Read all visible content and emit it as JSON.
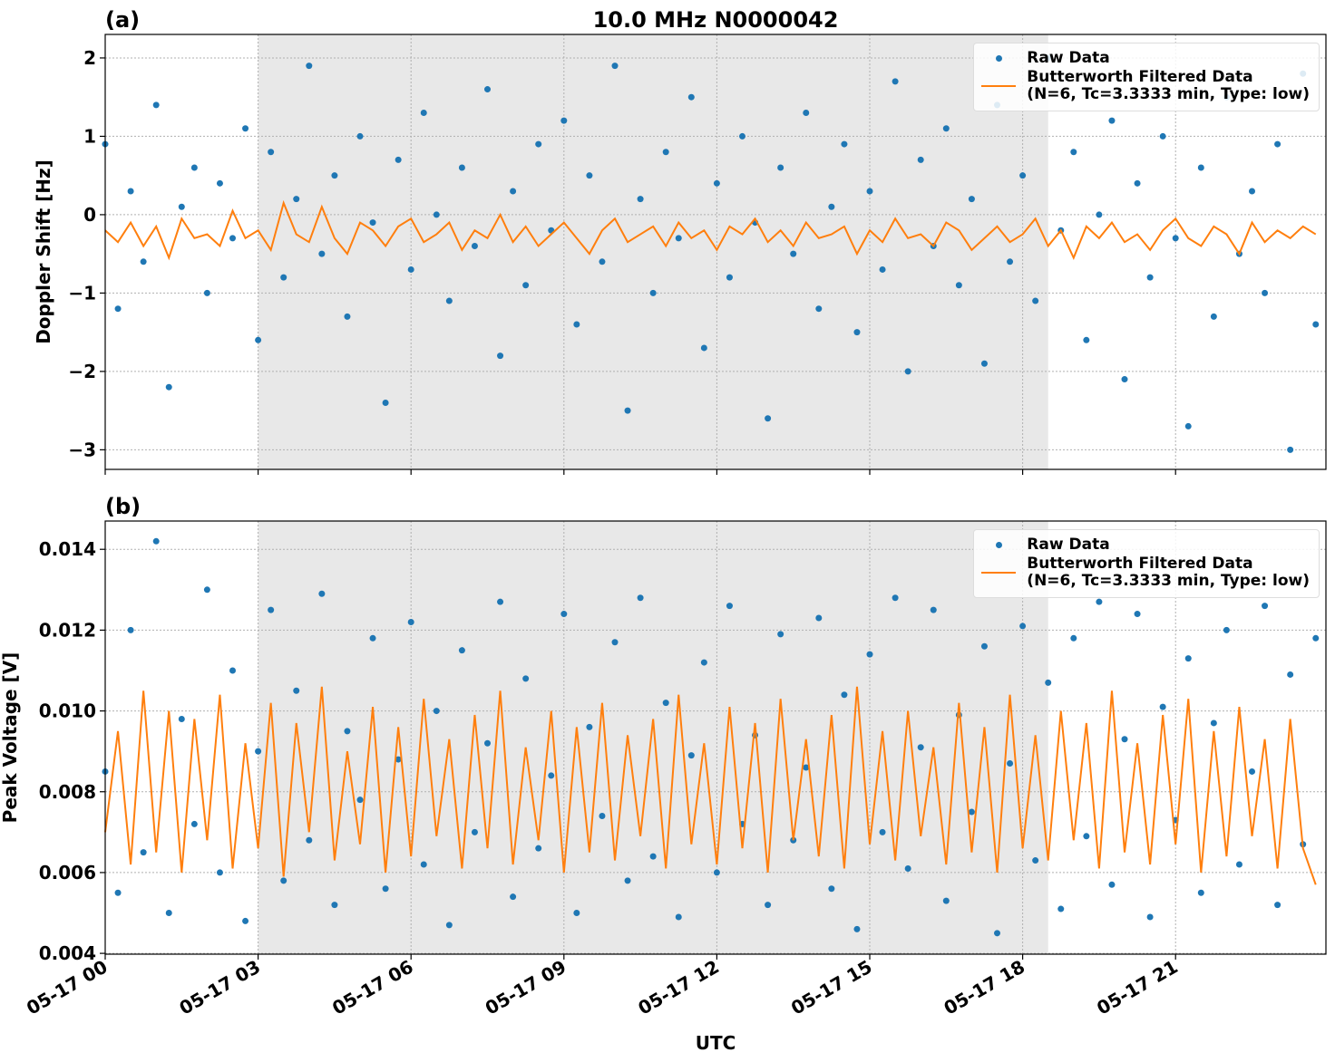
{
  "chart_data": [
    {
      "type": "line",
      "panel_label": "(a)",
      "title": "10.0 MHz N0000042",
      "ylabel": "Doppler Shift [Hz]",
      "x": [
        0,
        0.25,
        0.5,
        0.75,
        1,
        1.25,
        1.5,
        1.75,
        2,
        2.25,
        2.5,
        2.75,
        3,
        3.25,
        3.5,
        3.75,
        4,
        4.25,
        4.5,
        4.75,
        5,
        5.25,
        5.5,
        5.75,
        6,
        6.25,
        6.5,
        6.75,
        7,
        7.25,
        7.5,
        7.75,
        8,
        8.25,
        8.5,
        8.75,
        9,
        9.25,
        9.5,
        9.75,
        10,
        10.25,
        10.5,
        10.75,
        11,
        11.25,
        11.5,
        11.75,
        12,
        12.25,
        12.5,
        12.75,
        13,
        13.25,
        13.5,
        13.75,
        14,
        14.25,
        14.5,
        14.75,
        15,
        15.25,
        15.5,
        15.75,
        16,
        16.25,
        16.5,
        16.75,
        17,
        17.25,
        17.5,
        17.75,
        18,
        18.25,
        18.5,
        18.75,
        19,
        19.25,
        19.5,
        19.75,
        20,
        20.25,
        20.5,
        20.75,
        21,
        21.25,
        21.5,
        21.75,
        22,
        22.25,
        22.5,
        22.75,
        23,
        23.25,
        23.5,
        23.75
      ],
      "xlim": [
        0,
        23.95
      ],
      "ylim": [
        -3.25,
        2.3
      ],
      "xticks": [
        0,
        3,
        6,
        9,
        12,
        15,
        18,
        21
      ],
      "yticks": [
        {
          "value": -3,
          "label": "−3"
        },
        {
          "value": -2,
          "label": "−2"
        },
        {
          "value": -1,
          "label": "−1"
        },
        0,
        1,
        2
      ],
      "grid": true,
      "shaded_span": [
        3,
        18.5
      ],
      "legend": "upper right",
      "series": [
        {
          "name": "Raw Data",
          "color": "#1f77b4",
          "mode": "markers",
          "values": [
            0.9,
            -1.2,
            0.3,
            -0.6,
            1.4,
            -2.2,
            0.1,
            0.6,
            -1.0,
            0.4,
            -0.3,
            1.1,
            -1.6,
            0.8,
            -0.8,
            0.2,
            1.9,
            -0.5,
            0.5,
            -1.3,
            1.0,
            -0.1,
            -2.4,
            0.7,
            -0.7,
            1.3,
            0.0,
            -1.1,
            0.6,
            -0.4,
            1.6,
            -1.8,
            0.3,
            -0.9,
            0.9,
            -0.2,
            1.2,
            -1.4,
            0.5,
            -0.6,
            1.9,
            -2.5,
            0.2,
            -1.0,
            0.8,
            -0.3,
            1.5,
            -1.7,
            0.4,
            -0.8,
            1.0,
            -0.1,
            -2.6,
            0.6,
            -0.5,
            1.3,
            -1.2,
            0.1,
            0.9,
            -1.5,
            0.3,
            -0.7,
            1.7,
            -2.0,
            0.7,
            -0.4,
            1.1,
            -0.9,
            0.2,
            -1.9,
            1.4,
            -0.6,
            0.5,
            -1.1,
            2.0,
            -0.2,
            0.8,
            -1.6,
            0.0,
            1.2,
            -2.1,
            0.4,
            -0.8,
            1.0,
            -0.3,
            -2.7,
            0.6,
            -1.3,
            1.5,
            -0.5,
            0.3,
            -1.0,
            0.9,
            -3.0,
            1.8,
            -1.4
          ]
        },
        {
          "name": "Butterworth Filtered Data\n(N=6, Tc=3.3333 min, Type: low)",
          "color": "#ff7f0e",
          "mode": "line",
          "values": [
            -0.2,
            -0.35,
            -0.1,
            -0.4,
            -0.15,
            -0.55,
            -0.05,
            -0.3,
            -0.25,
            -0.4,
            0.05,
            -0.3,
            -0.2,
            -0.45,
            0.15,
            -0.25,
            -0.35,
            0.1,
            -0.3,
            -0.5,
            -0.1,
            -0.2,
            -0.4,
            -0.15,
            -0.05,
            -0.35,
            -0.25,
            -0.1,
            -0.45,
            -0.2,
            -0.3,
            0.0,
            -0.35,
            -0.15,
            -0.4,
            -0.25,
            -0.1,
            -0.3,
            -0.5,
            -0.2,
            -0.05,
            -0.35,
            -0.25,
            -0.15,
            -0.4,
            -0.1,
            -0.3,
            -0.2,
            -0.45,
            -0.15,
            -0.25,
            -0.05,
            -0.35,
            -0.2,
            -0.4,
            -0.1,
            -0.3,
            -0.25,
            -0.15,
            -0.5,
            -0.2,
            -0.35,
            -0.05,
            -0.3,
            -0.25,
            -0.4,
            -0.1,
            -0.2,
            -0.45,
            -0.3,
            -0.15,
            -0.35,
            -0.25,
            -0.05,
            -0.4,
            -0.2,
            -0.55,
            -0.15,
            -0.3,
            -0.1,
            -0.35,
            -0.25,
            -0.45,
            -0.2,
            -0.05,
            -0.3,
            -0.4,
            -0.15,
            -0.25,
            -0.5,
            -0.1,
            -0.35,
            -0.2,
            -0.3,
            -0.15,
            -0.25
          ]
        }
      ]
    },
    {
      "type": "line",
      "panel_label": "(b)",
      "ylabel": "Peak Voltage [V]",
      "xlabel": "UTC",
      "x": [
        0,
        0.25,
        0.5,
        0.75,
        1,
        1.25,
        1.5,
        1.75,
        2,
        2.25,
        2.5,
        2.75,
        3,
        3.25,
        3.5,
        3.75,
        4,
        4.25,
        4.5,
        4.75,
        5,
        5.25,
        5.5,
        5.75,
        6,
        6.25,
        6.5,
        6.75,
        7,
        7.25,
        7.5,
        7.75,
        8,
        8.25,
        8.5,
        8.75,
        9,
        9.25,
        9.5,
        9.75,
        10,
        10.25,
        10.5,
        10.75,
        11,
        11.25,
        11.5,
        11.75,
        12,
        12.25,
        12.5,
        12.75,
        13,
        13.25,
        13.5,
        13.75,
        14,
        14.25,
        14.5,
        14.75,
        15,
        15.25,
        15.5,
        15.75,
        16,
        16.25,
        16.5,
        16.75,
        17,
        17.25,
        17.5,
        17.75,
        18,
        18.25,
        18.5,
        18.75,
        19,
        19.25,
        19.5,
        19.75,
        20,
        20.25,
        20.5,
        20.75,
        21,
        21.25,
        21.5,
        21.75,
        22,
        22.25,
        22.5,
        22.75,
        23,
        23.25,
        23.5,
        23.75
      ],
      "xlim": [
        0,
        23.95
      ],
      "ylim": [
        0.00398,
        0.0147
      ],
      "xticks": [
        {
          "value": 0,
          "label": "05-17 00"
        },
        {
          "value": 3,
          "label": "05-17 03"
        },
        {
          "value": 6,
          "label": "05-17 06"
        },
        {
          "value": 9,
          "label": "05-17 09"
        },
        {
          "value": 12,
          "label": "05-17 12"
        },
        {
          "value": 15,
          "label": "05-17 15"
        },
        {
          "value": 18,
          "label": "05-17 18"
        },
        {
          "value": 21,
          "label": "05-17 21"
        }
      ],
      "yticks": [
        0.004,
        0.006,
        0.008,
        {
          "value": 0.01,
          "label": "0.010"
        },
        0.012,
        0.014
      ],
      "grid": true,
      "shaded_span": [
        3,
        18.5
      ],
      "legend": "upper right",
      "series": [
        {
          "name": "Raw Data",
          "color": "#1f77b4",
          "mode": "markers",
          "values": [
            0.0085,
            0.0055,
            0.012,
            0.0065,
            0.0142,
            0.005,
            0.0098,
            0.0072,
            0.013,
            0.006,
            0.011,
            0.0048,
            0.009,
            0.0125,
            0.0058,
            0.0105,
            0.0068,
            0.0129,
            0.0052,
            0.0095,
            0.0078,
            0.0118,
            0.0056,
            0.0088,
            0.0122,
            0.0062,
            0.01,
            0.0047,
            0.0115,
            0.007,
            0.0092,
            0.0127,
            0.0054,
            0.0108,
            0.0066,
            0.0084,
            0.0124,
            0.005,
            0.0096,
            0.0074,
            0.0117,
            0.0058,
            0.0128,
            0.0064,
            0.0102,
            0.0049,
            0.0089,
            0.0112,
            0.006,
            0.0126,
            0.0072,
            0.0094,
            0.0052,
            0.0119,
            0.0068,
            0.0086,
            0.0123,
            0.0056,
            0.0104,
            0.0046,
            0.0114,
            0.007,
            0.0128,
            0.0061,
            0.0091,
            0.0125,
            0.0053,
            0.0099,
            0.0075,
            0.0116,
            0.0045,
            0.0087,
            0.0121,
            0.0063,
            0.0107,
            0.0051,
            0.0118,
            0.0069,
            0.0127,
            0.0057,
            0.0093,
            0.0124,
            0.0049,
            0.0101,
            0.0073,
            0.0113,
            0.0055,
            0.0097,
            0.012,
            0.0062,
            0.0085,
            0.0126,
            0.0052,
            0.0109,
            0.0067,
            0.0118
          ]
        },
        {
          "name": "Butterworth Filtered Data\n(N=6, Tc=3.3333 min, Type: low)",
          "color": "#ff7f0e",
          "mode": "line",
          "values": [
            0.007,
            0.0095,
            0.0062,
            0.0105,
            0.0065,
            0.01,
            0.006,
            0.0098,
            0.0068,
            0.0104,
            0.0061,
            0.0092,
            0.0066,
            0.0102,
            0.0059,
            0.0097,
            0.007,
            0.0106,
            0.0063,
            0.009,
            0.0067,
            0.0101,
            0.006,
            0.0096,
            0.0064,
            0.0103,
            0.0069,
            0.0093,
            0.0061,
            0.0099,
            0.0066,
            0.0105,
            0.0062,
            0.0091,
            0.0068,
            0.01,
            0.006,
            0.0096,
            0.0065,
            0.0102,
            0.0063,
            0.0094,
            0.0069,
            0.0098,
            0.0061,
            0.0104,
            0.0067,
            0.0092,
            0.0062,
            0.0101,
            0.0066,
            0.0097,
            0.006,
            0.0103,
            0.0068,
            0.0093,
            0.0064,
            0.0099,
            0.0061,
            0.0106,
            0.0067,
            0.0095,
            0.0063,
            0.01,
            0.0069,
            0.0091,
            0.0062,
            0.0102,
            0.0065,
            0.0096,
            0.006,
            0.0104,
            0.0066,
            0.0094,
            0.0063,
            0.01,
            0.0068,
            0.0097,
            0.0061,
            0.0105,
            0.0065,
            0.0092,
            0.0062,
            0.0099,
            0.0067,
            0.0103,
            0.006,
            0.0095,
            0.0064,
            0.0101,
            0.0069,
            0.0093,
            0.0061,
            0.0098,
            0.0066,
            0.0057
          ]
        }
      ]
    }
  ]
}
